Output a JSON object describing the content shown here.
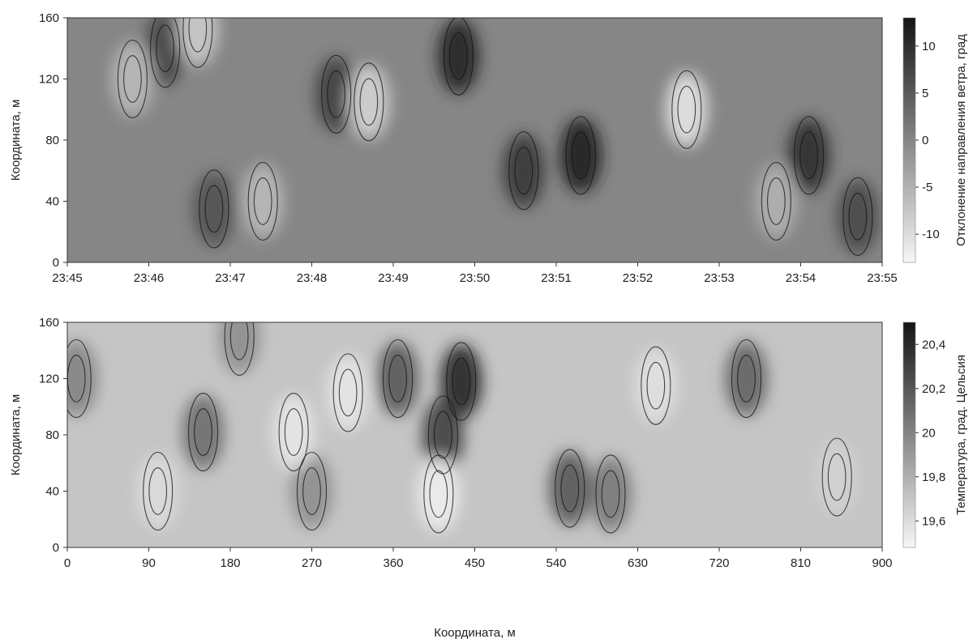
{
  "chart_data": [
    {
      "type": "heatmap",
      "subtype": "filled-contour",
      "colormap": "grayscale",
      "ylabel": "Координата, м",
      "ylim": [
        0,
        160
      ],
      "y_ticks": [
        "0",
        "40",
        "80",
        "120",
        "160"
      ],
      "x_ticks": [
        "23:45",
        "23:46",
        "23:47",
        "23:48",
        "23:49",
        "23:50",
        "23:51",
        "23:52",
        "23:53",
        "23:54",
        "23:55"
      ],
      "xlim": [
        "23:45",
        "23:55"
      ],
      "colorbar": {
        "label": "Отклонение направления ветра, град",
        "range": [
          -13,
          13
        ],
        "ticks": [
          "-10",
          "-5",
          "0",
          "5",
          "10"
        ],
        "tick_values": [
          -10,
          -5,
          0,
          5,
          10
        ]
      },
      "features": [
        {
          "x": 63,
          "y": 70,
          "value": 12
        },
        {
          "x": 48,
          "y": 135,
          "value": 11
        },
        {
          "x": 91,
          "y": 70,
          "value": 10
        },
        {
          "x": 56,
          "y": 60,
          "value": 9
        },
        {
          "x": 33,
          "y": 110,
          "value": 8
        },
        {
          "x": 12,
          "y": 140,
          "value": 7
        },
        {
          "x": 18,
          "y": 35,
          "value": 6
        },
        {
          "x": 97,
          "y": 30,
          "value": 7
        },
        {
          "x": 76,
          "y": 100,
          "value": -11
        },
        {
          "x": 37,
          "y": 105,
          "value": -9
        },
        {
          "x": 16,
          "y": 153,
          "value": -8
        },
        {
          "x": 8,
          "y": 120,
          "value": -6
        },
        {
          "x": 87,
          "y": 40,
          "value": -5
        },
        {
          "x": 24,
          "y": 40,
          "value": -6
        }
      ]
    },
    {
      "type": "heatmap",
      "subtype": "filled-contour",
      "colormap": "grayscale",
      "xlabel": "Координата, м",
      "ylabel": "Координата, м",
      "xlim": [
        0,
        900
      ],
      "ylim": [
        0,
        160
      ],
      "x_ticks": [
        "0",
        "90",
        "180",
        "270",
        "360",
        "450",
        "540",
        "630",
        "720",
        "810",
        "900"
      ],
      "y_ticks": [
        "0",
        "40",
        "80",
        "120",
        "160"
      ],
      "colorbar": {
        "label": "Температура, град. Цельсия",
        "range": [
          19.48,
          20.5
        ],
        "ticks": [
          "19,6",
          "19,8",
          "20",
          "20,2",
          "20,4"
        ],
        "tick_values": [
          19.6,
          19.8,
          20.0,
          20.2,
          20.4
        ]
      },
      "features": [
        {
          "x": 435,
          "y": 118,
          "value": 20.42
        },
        {
          "x": 415,
          "y": 80,
          "value": 20.3
        },
        {
          "x": 365,
          "y": 120,
          "value": 20.2
        },
        {
          "x": 750,
          "y": 120,
          "value": 20.15
        },
        {
          "x": 555,
          "y": 42,
          "value": 20.2
        },
        {
          "x": 600,
          "y": 38,
          "value": 20.05
        },
        {
          "x": 150,
          "y": 82,
          "value": 20.1
        },
        {
          "x": 10,
          "y": 120,
          "value": 20.0
        },
        {
          "x": 270,
          "y": 40,
          "value": 19.95
        },
        {
          "x": 190,
          "y": 150,
          "value": 19.95
        },
        {
          "x": 410,
          "y": 38,
          "value": 19.52
        },
        {
          "x": 310,
          "y": 110,
          "value": 19.55
        },
        {
          "x": 250,
          "y": 82,
          "value": 19.55
        },
        {
          "x": 650,
          "y": 115,
          "value": 19.58
        },
        {
          "x": 100,
          "y": 40,
          "value": 19.6
        },
        {
          "x": 850,
          "y": 50,
          "value": 19.65
        }
      ]
    }
  ]
}
